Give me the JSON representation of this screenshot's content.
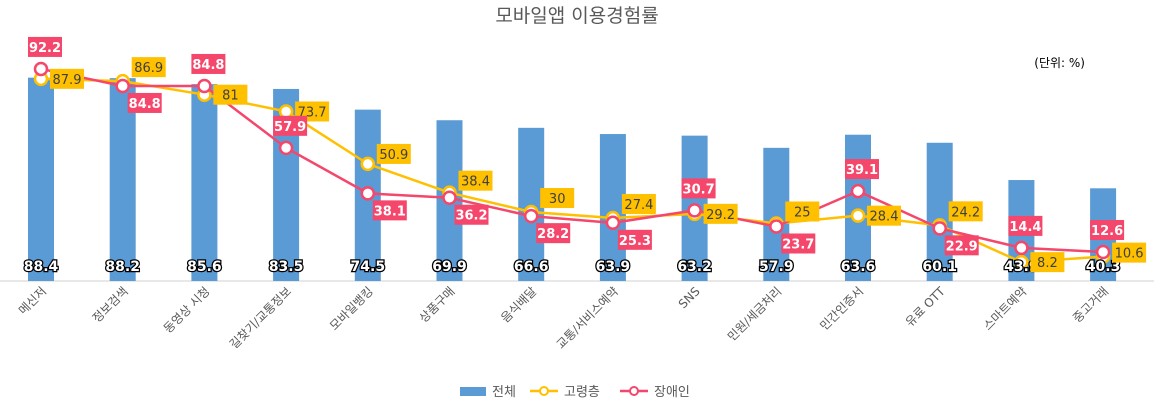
{
  "chart_data": {
    "type": "bar",
    "title": "모바일앱 이용경험률",
    "unit_note": "(단위: %)",
    "categories": [
      "메신저",
      "정보검색",
      "동영상 시청",
      "길찾기/교통정보",
      "모바일뱅킹",
      "상품구매",
      "음식배달",
      "교통/서비스예약",
      "SNS",
      "민원/세금처리",
      "민간인증서",
      "유료 OTT",
      "스마트예약",
      "중고거래"
    ],
    "series": [
      {
        "name": "전체",
        "kind": "bar",
        "color": "#5B9BD5",
        "values": [
          88.4,
          88.2,
          85.6,
          83.5,
          74.5,
          69.9,
          66.6,
          63.9,
          63.2,
          57.9,
          63.6,
          60.1,
          43.9,
          40.3
        ]
      },
      {
        "name": "고령층",
        "kind": "line",
        "color": "#FFC000",
        "label_bg": "#FFC000",
        "values": [
          87.9,
          86.9,
          81.0,
          73.7,
          50.9,
          38.4,
          30.0,
          27.4,
          29.2,
          25.0,
          28.4,
          24.2,
          8.2,
          10.6
        ]
      },
      {
        "name": "장애인",
        "kind": "line",
        "color": "#F4476B",
        "label_bg": "#F4476B",
        "values": [
          92.2,
          84.8,
          84.8,
          57.9,
          38.1,
          36.2,
          28.2,
          25.3,
          30.7,
          23.7,
          39.1,
          22.9,
          14.4,
          12.6
        ]
      }
    ],
    "ylim": [
      0,
      100
    ],
    "grid": false,
    "legend": "bottom"
  }
}
